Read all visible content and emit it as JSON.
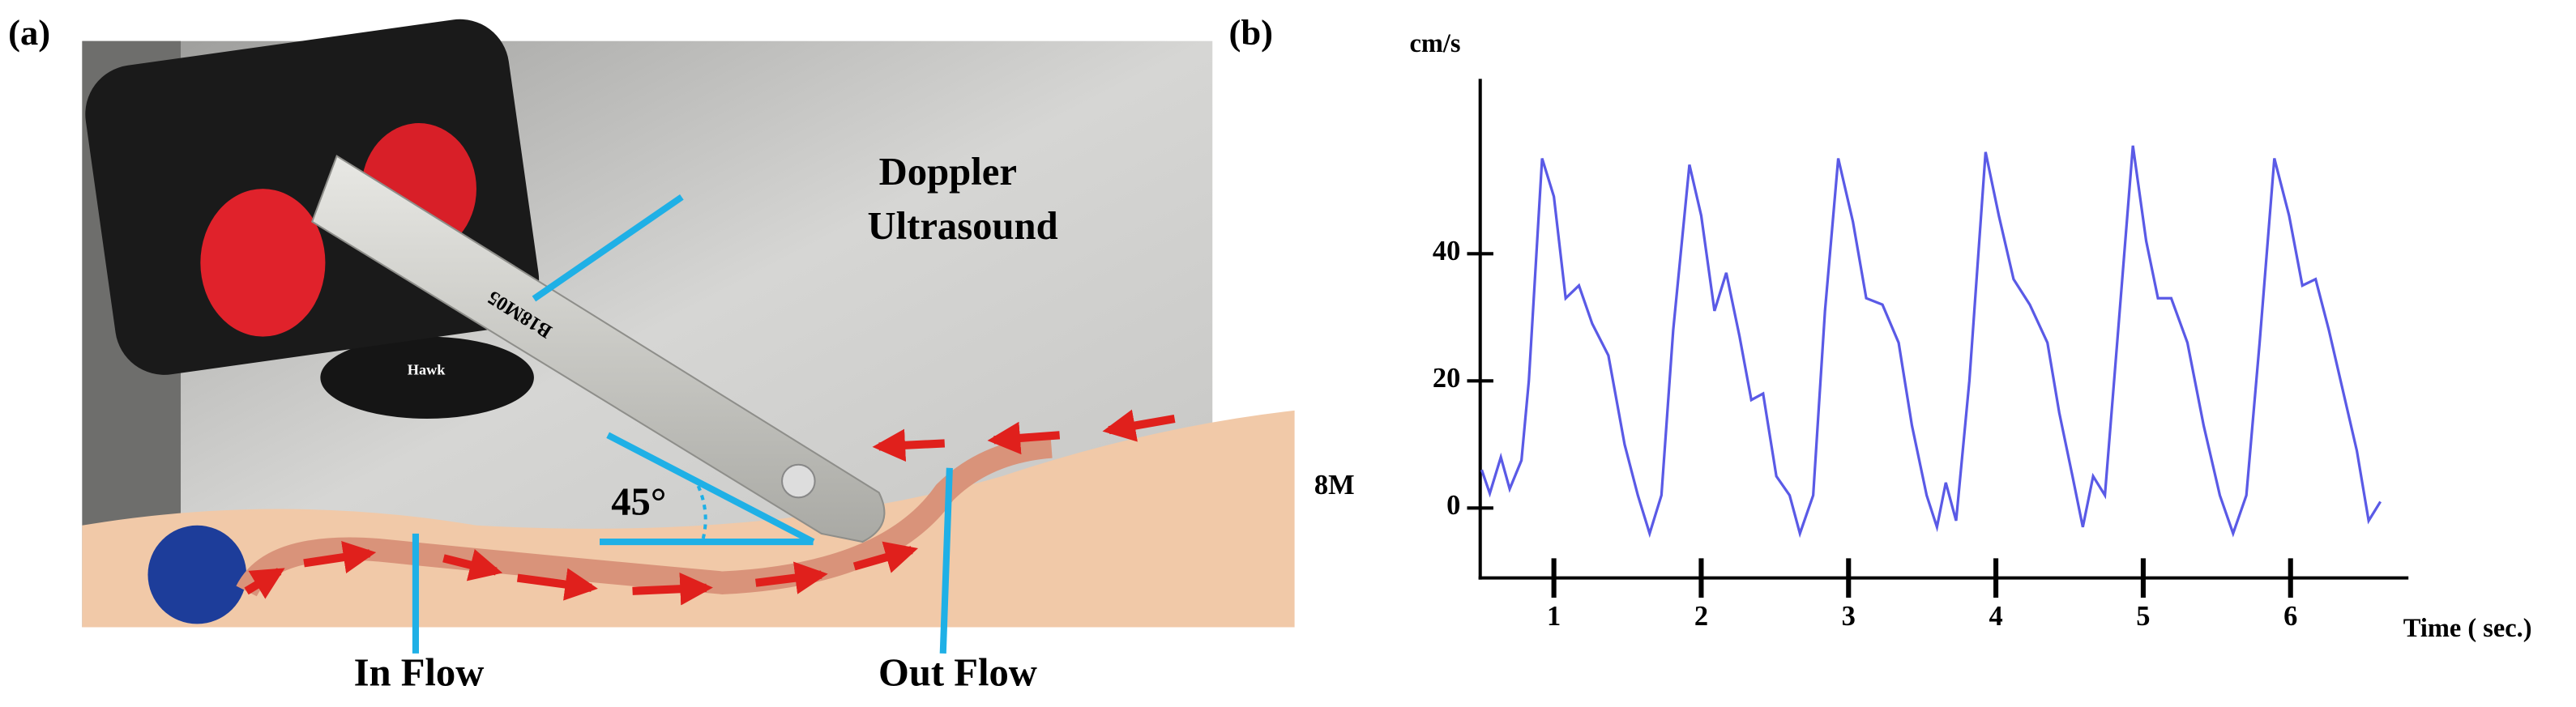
{
  "panel_a": {
    "label": "(a)",
    "probe_title_1": "Doppler",
    "probe_title_2": "Ultrasound",
    "angle": "45°",
    "in_flow": "In Flow",
    "out_flow": "Out Flow",
    "probe_text": "B18M05",
    "holder_text": "Hawk"
  },
  "chart_data": {
    "type": "line",
    "panel_label": "(b)",
    "y_label": "cm/s",
    "x_label": "Time ( sec.)",
    "side_label": "8M",
    "xlim": [
      0.5,
      6.8
    ],
    "ylim": [
      -11,
      67
    ],
    "xticks": [
      1,
      2,
      3,
      4,
      5,
      6
    ],
    "yticks": [
      0,
      20,
      40
    ],
    "series": [
      {
        "color": "#5a5ae6",
        "x": [
          0.51,
          0.565,
          0.64,
          0.7,
          0.78,
          0.83,
          0.92,
          1.0,
          1.08,
          1.17,
          1.26,
          1.37,
          1.48,
          1.57,
          1.65,
          1.73,
          1.81,
          1.92,
          2.0,
          2.09,
          2.17,
          2.26,
          2.34,
          2.42,
          2.51,
          2.6,
          2.67,
          2.76,
          2.84,
          2.93,
          3.03,
          3.12,
          3.23,
          3.34,
          3.43,
          3.53,
          3.6,
          3.66,
          3.73,
          3.82,
          3.93,
          4.02,
          4.12,
          4.23,
          4.35,
          4.43,
          4.52,
          4.59,
          4.66,
          4.74,
          4.83,
          4.93,
          5.02,
          5.1,
          5.19,
          5.3,
          5.41,
          5.52,
          5.61,
          5.7,
          5.79,
          5.89,
          5.99,
          6.08,
          6.17,
          6.26,
          6.36,
          6.45,
          6.53,
          6.61
        ],
        "values": [
          6,
          2.3,
          8,
          3,
          7.5,
          20,
          55,
          49,
          33,
          35,
          29,
          24,
          10,
          2,
          -4,
          2,
          28,
          54,
          46,
          31,
          37,
          27,
          17,
          18,
          5,
          2,
          -4,
          2,
          31,
          55,
          45,
          33,
          32,
          26,
          13,
          2,
          -3,
          4,
          -2,
          20,
          56,
          46,
          36,
          32,
          26,
          15,
          5,
          -3,
          5,
          2,
          28,
          57,
          42,
          33,
          33,
          26,
          13,
          2,
          -4,
          2,
          26,
          55,
          46,
          35,
          36,
          28,
          18,
          9,
          -2,
          1
        ]
      }
    ]
  }
}
